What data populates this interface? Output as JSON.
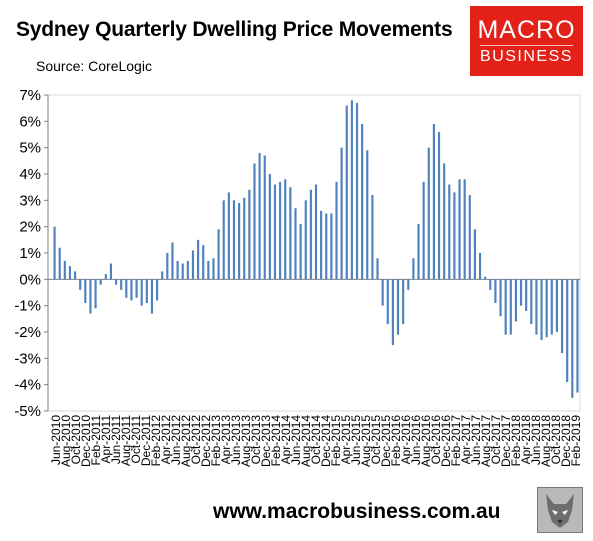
{
  "header": {
    "title": "Sydney Quarterly Dwelling Price Movements",
    "source": "Source: CoreLogic"
  },
  "logo": {
    "line1": "MACRO",
    "line2": "BUSINESS",
    "color": "#e32119"
  },
  "footer": {
    "url": "www.macrobusiness.com.au"
  },
  "chart_data": {
    "type": "bar",
    "bar_color": "#4f81bd",
    "ylim": [
      -5,
      7
    ],
    "yticks": [
      7,
      6,
      5,
      4,
      3,
      2,
      1,
      0,
      -1,
      -2,
      -3,
      -4,
      -5
    ],
    "ytick_labels": [
      "7%",
      "6%",
      "5%",
      "4%",
      "3%",
      "2%",
      "1%",
      "0%",
      "-1%",
      "-2%",
      "-3%",
      "-4%",
      "-5%"
    ],
    "x_tick_labels": [
      "Jun-2010",
      "Aug-2010",
      "Oct-2010",
      "Dec-2010",
      "Feb-2011",
      "Apr-2011",
      "Jun-2011",
      "Aug-2011",
      "Oct-2011",
      "Dec-2011",
      "Feb-2012",
      "Apr-2012",
      "Jun-2012",
      "Aug-2012",
      "Oct-2012",
      "Dec-2012",
      "Feb-2013",
      "Apr-2013",
      "Jun-2013",
      "Aug-2013",
      "Oct-2013",
      "Dec-2013",
      "Feb-2014",
      "Apr-2014",
      "Jun-2014",
      "Aug-2014",
      "Oct-2014",
      "Dec-2014",
      "Feb-2015",
      "Apr-2015",
      "Jun-2015",
      "Aug-2015",
      "Oct-2015",
      "Dec-2015",
      "Feb-2016",
      "Apr-2016",
      "Jun-2016",
      "Aug-2016",
      "Oct-2016",
      "Dec-2016",
      "Feb-2017",
      "Apr-2017",
      "Jun-2017",
      "Aug-2017",
      "Oct-2017",
      "Dec-2017",
      "Feb-2018",
      "Apr-2018",
      "Jun-2018",
      "Aug-2018",
      "Oct-2018",
      "Dec-2018",
      "Feb-2019"
    ],
    "values": [
      2.0,
      1.2,
      0.7,
      0.5,
      0.3,
      -0.4,
      -0.9,
      -1.3,
      -1.1,
      -0.2,
      0.2,
      0.6,
      -0.2,
      -0.4,
      -0.7,
      -0.8,
      -0.7,
      -1.0,
      -0.9,
      -1.3,
      -0.8,
      0.3,
      1.0,
      1.4,
      0.7,
      0.6,
      0.7,
      1.1,
      1.5,
      1.3,
      0.7,
      0.8,
      1.9,
      3.0,
      3.3,
      3.0,
      2.9,
      3.1,
      3.4,
      4.4,
      4.8,
      4.7,
      4.0,
      3.6,
      3.7,
      3.8,
      3.5,
      2.7,
      2.1,
      3.0,
      3.4,
      3.6,
      2.6,
      2.5,
      2.5,
      3.7,
      5.0,
      6.6,
      6.8,
      6.7,
      5.9,
      4.9,
      3.2,
      0.8,
      -1.0,
      -1.7,
      -2.5,
      -2.1,
      -1.7,
      -0.4,
      0.8,
      2.1,
      3.7,
      5.0,
      5.9,
      5.6,
      4.4,
      3.6,
      3.3,
      3.8,
      3.8,
      3.2,
      1.9,
      1.0,
      0.1,
      -0.4,
      -0.9,
      -1.4,
      -2.1,
      -2.1,
      -1.6,
      -1.0,
      -1.2,
      -1.7,
      -2.1,
      -2.3,
      -2.2,
      -2.1,
      -2.0,
      -2.8,
      -3.9,
      -4.5,
      -4.3
    ]
  }
}
